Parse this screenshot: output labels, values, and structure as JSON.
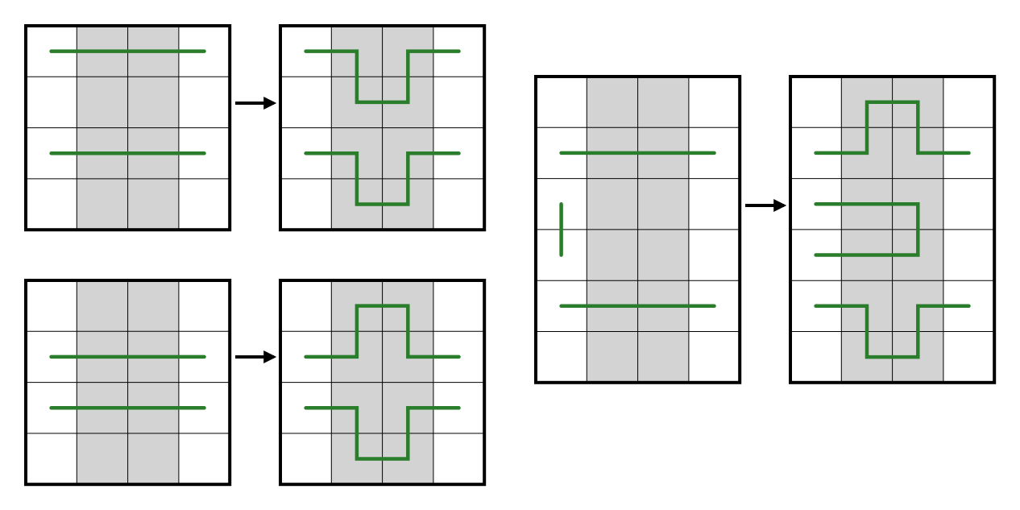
{
  "colors": {
    "background": "#ffffff",
    "shaded_column": "#d3d3d3",
    "grid_line": "#000000",
    "frame": "#000000",
    "path": "#2a7d2a",
    "arrow": "#000000"
  },
  "transformations": [
    {
      "id": "top-left",
      "before": {
        "rows": 4,
        "cols": 4,
        "shaded_cols": [
          1,
          2
        ],
        "paths": [
          [
            [
              0.5,
              0.5
            ],
            [
              3.5,
              0.5
            ]
          ],
          [
            [
              0.5,
              2.5
            ],
            [
              3.5,
              2.5
            ]
          ]
        ]
      },
      "after": {
        "rows": 4,
        "cols": 4,
        "shaded_cols": [
          1,
          2
        ],
        "paths": [
          [
            [
              0.5,
              0.5
            ],
            [
              1.5,
              0.5
            ],
            [
              1.5,
              1.5
            ],
            [
              2.5,
              1.5
            ],
            [
              2.5,
              0.5
            ],
            [
              3.5,
              0.5
            ]
          ],
          [
            [
              0.5,
              2.5
            ],
            [
              1.5,
              2.5
            ],
            [
              1.5,
              3.5
            ],
            [
              2.5,
              3.5
            ],
            [
              2.5,
              2.5
            ],
            [
              3.5,
              2.5
            ]
          ]
        ]
      }
    },
    {
      "id": "bottom-left",
      "before": {
        "rows": 4,
        "cols": 4,
        "shaded_cols": [
          1,
          2
        ],
        "paths": [
          [
            [
              0.5,
              1.5
            ],
            [
              3.5,
              1.5
            ]
          ],
          [
            [
              0.5,
              2.5
            ],
            [
              3.5,
              2.5
            ]
          ]
        ]
      },
      "after": {
        "rows": 4,
        "cols": 4,
        "shaded_cols": [
          1,
          2
        ],
        "paths": [
          [
            [
              0.5,
              1.5
            ],
            [
              1.5,
              1.5
            ],
            [
              1.5,
              0.5
            ],
            [
              2.5,
              0.5
            ],
            [
              2.5,
              1.5
            ],
            [
              3.5,
              1.5
            ]
          ],
          [
            [
              0.5,
              2.5
            ],
            [
              1.5,
              2.5
            ],
            [
              1.5,
              3.5
            ],
            [
              2.5,
              3.5
            ],
            [
              2.5,
              2.5
            ],
            [
              3.5,
              2.5
            ]
          ]
        ]
      }
    },
    {
      "id": "right",
      "before": {
        "rows": 6,
        "cols": 4,
        "shaded_cols": [
          1,
          2
        ],
        "paths": [
          [
            [
              0.5,
              1.5
            ],
            [
              3.5,
              1.5
            ]
          ],
          [
            [
              0.5,
              2.5
            ],
            [
              0.5,
              3.5
            ]
          ],
          [
            [
              0.5,
              4.5
            ],
            [
              3.5,
              4.5
            ]
          ]
        ]
      },
      "after": {
        "rows": 6,
        "cols": 4,
        "shaded_cols": [
          1,
          2
        ],
        "paths": [
          [
            [
              0.5,
              1.5
            ],
            [
              1.5,
              1.5
            ],
            [
              1.5,
              0.5
            ],
            [
              2.5,
              0.5
            ],
            [
              2.5,
              1.5
            ],
            [
              3.5,
              1.5
            ]
          ],
          [
            [
              0.5,
              2.5
            ],
            [
              2.5,
              2.5
            ],
            [
              2.5,
              3.5
            ],
            [
              0.5,
              3.5
            ]
          ],
          [
            [
              0.5,
              4.5
            ],
            [
              1.5,
              4.5
            ],
            [
              1.5,
              5.5
            ],
            [
              2.5,
              5.5
            ],
            [
              2.5,
              4.5
            ],
            [
              3.5,
              4.5
            ]
          ]
        ]
      }
    }
  ]
}
